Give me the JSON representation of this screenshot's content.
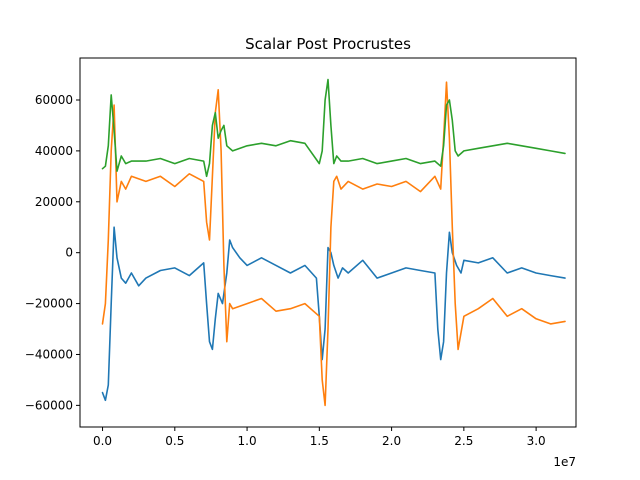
{
  "chart_data": {
    "type": "line",
    "title": "Scalar Post Procrustes",
    "xlabel": "",
    "ylabel": "",
    "x_offset_label": "1e7",
    "xlim": [
      -0.156,
      3.276
    ],
    "ylim": [
      -68500,
      76500
    ],
    "xticks": [
      0,
      0.5,
      1.0,
      1.5,
      2.0,
      2.5,
      3.0
    ],
    "xtick_labels": [
      "0.0",
      "0.5",
      "1.0",
      "1.5",
      "2.0",
      "2.5",
      "3.0"
    ],
    "yticks": [
      -60000,
      -40000,
      -20000,
      0,
      20000,
      40000,
      60000
    ],
    "ytick_labels": [
      "−60000",
      "−40000",
      "−20000",
      "0",
      "20000",
      "40000",
      "60000"
    ],
    "grid": false,
    "colors": [
      "#1f77b4",
      "#ff7f0e",
      "#2ca02c"
    ],
    "series": [
      {
        "color": "#1f77b4",
        "x": [
          0,
          0.02,
          0.04,
          0.06,
          0.08,
          0.1,
          0.13,
          0.16,
          0.2,
          0.25,
          0.3,
          0.4,
          0.5,
          0.6,
          0.7,
          0.72,
          0.74,
          0.76,
          0.78,
          0.8,
          0.83,
          0.86,
          0.88,
          0.9,
          0.95,
          1.0,
          1.1,
          1.2,
          1.3,
          1.4,
          1.48,
          1.5,
          1.52,
          1.54,
          1.56,
          1.58,
          1.6,
          1.63,
          1.66,
          1.7,
          1.8,
          1.9,
          2.0,
          2.1,
          2.2,
          2.3,
          2.32,
          2.34,
          2.36,
          2.38,
          2.4,
          2.42,
          2.45,
          2.48,
          2.5,
          2.6,
          2.7,
          2.8,
          2.9,
          3.0,
          3.1,
          3.2
        ],
        "y": [
          -55000,
          -58000,
          -52000,
          -20000,
          10000,
          -2000,
          -10000,
          -12000,
          -8000,
          -13000,
          -10000,
          -7000,
          -6000,
          -9000,
          -4000,
          -20000,
          -35000,
          -38000,
          -26000,
          -16000,
          -20000,
          -8000,
          5000,
          2000,
          -2000,
          -5000,
          -2000,
          -5000,
          -8000,
          -5000,
          -10000,
          -25000,
          -42000,
          -30000,
          2000,
          0,
          -5000,
          -10000,
          -6000,
          -8000,
          -3000,
          -10000,
          -8000,
          -6000,
          -7000,
          -8000,
          -30000,
          -42000,
          -35000,
          -8000,
          8000,
          0,
          -5000,
          -8000,
          -3000,
          -4000,
          -2000,
          -8000,
          -6000,
          -8000,
          -9000,
          -10000
        ]
      },
      {
        "color": "#ff7f0e",
        "x": [
          0,
          0.02,
          0.04,
          0.06,
          0.08,
          0.1,
          0.13,
          0.16,
          0.2,
          0.3,
          0.4,
          0.5,
          0.6,
          0.7,
          0.72,
          0.74,
          0.76,
          0.78,
          0.8,
          0.82,
          0.84,
          0.86,
          0.88,
          0.9,
          1.0,
          1.1,
          1.2,
          1.3,
          1.4,
          1.5,
          1.52,
          1.54,
          1.56,
          1.58,
          1.6,
          1.62,
          1.65,
          1.7,
          1.8,
          1.9,
          2.0,
          2.1,
          2.2,
          2.3,
          2.34,
          2.36,
          2.38,
          2.4,
          2.42,
          2.44,
          2.46,
          2.5,
          2.6,
          2.7,
          2.8,
          2.9,
          3.0,
          3.1,
          3.2
        ],
        "y": [
          -28000,
          -20000,
          5000,
          40000,
          58000,
          20000,
          28000,
          25000,
          30000,
          28000,
          30000,
          26000,
          31000,
          28000,
          12000,
          5000,
          30000,
          55000,
          64000,
          40000,
          -5000,
          -35000,
          -20000,
          -22000,
          -20000,
          -18000,
          -23000,
          -22000,
          -20000,
          -25000,
          -50000,
          -60000,
          -30000,
          10000,
          28000,
          30000,
          25000,
          28000,
          25000,
          27000,
          26000,
          28000,
          24000,
          30000,
          25000,
          45000,
          67000,
          45000,
          10000,
          -20000,
          -38000,
          -25000,
          -22000,
          -18000,
          -25000,
          -22000,
          -26000,
          -28000,
          -27000
        ]
      },
      {
        "color": "#2ca02c",
        "x": [
          0,
          0.02,
          0.04,
          0.06,
          0.08,
          0.1,
          0.13,
          0.16,
          0.2,
          0.3,
          0.4,
          0.5,
          0.6,
          0.7,
          0.72,
          0.74,
          0.76,
          0.78,
          0.8,
          0.82,
          0.84,
          0.86,
          0.9,
          1.0,
          1.1,
          1.2,
          1.3,
          1.4,
          1.5,
          1.52,
          1.54,
          1.56,
          1.58,
          1.6,
          1.62,
          1.65,
          1.7,
          1.8,
          1.9,
          2.0,
          2.1,
          2.2,
          2.3,
          2.34,
          2.36,
          2.38,
          2.4,
          2.42,
          2.44,
          2.46,
          2.5,
          2.6,
          2.7,
          2.8,
          2.9,
          3.0,
          3.1,
          3.2
        ],
        "y": [
          33000,
          34000,
          42000,
          62000,
          48000,
          32000,
          38000,
          35000,
          36000,
          36000,
          37000,
          35000,
          37000,
          36000,
          30000,
          35000,
          50000,
          55000,
          45000,
          48000,
          50000,
          42000,
          40000,
          42000,
          43000,
          42000,
          44000,
          43000,
          35000,
          40000,
          60000,
          68000,
          50000,
          35000,
          38000,
          36000,
          36000,
          37000,
          35000,
          36000,
          37000,
          35000,
          36000,
          34000,
          42000,
          58000,
          60000,
          52000,
          40000,
          38000,
          40000,
          41000,
          42000,
          43000,
          42000,
          41000,
          40000,
          39000
        ]
      }
    ]
  }
}
